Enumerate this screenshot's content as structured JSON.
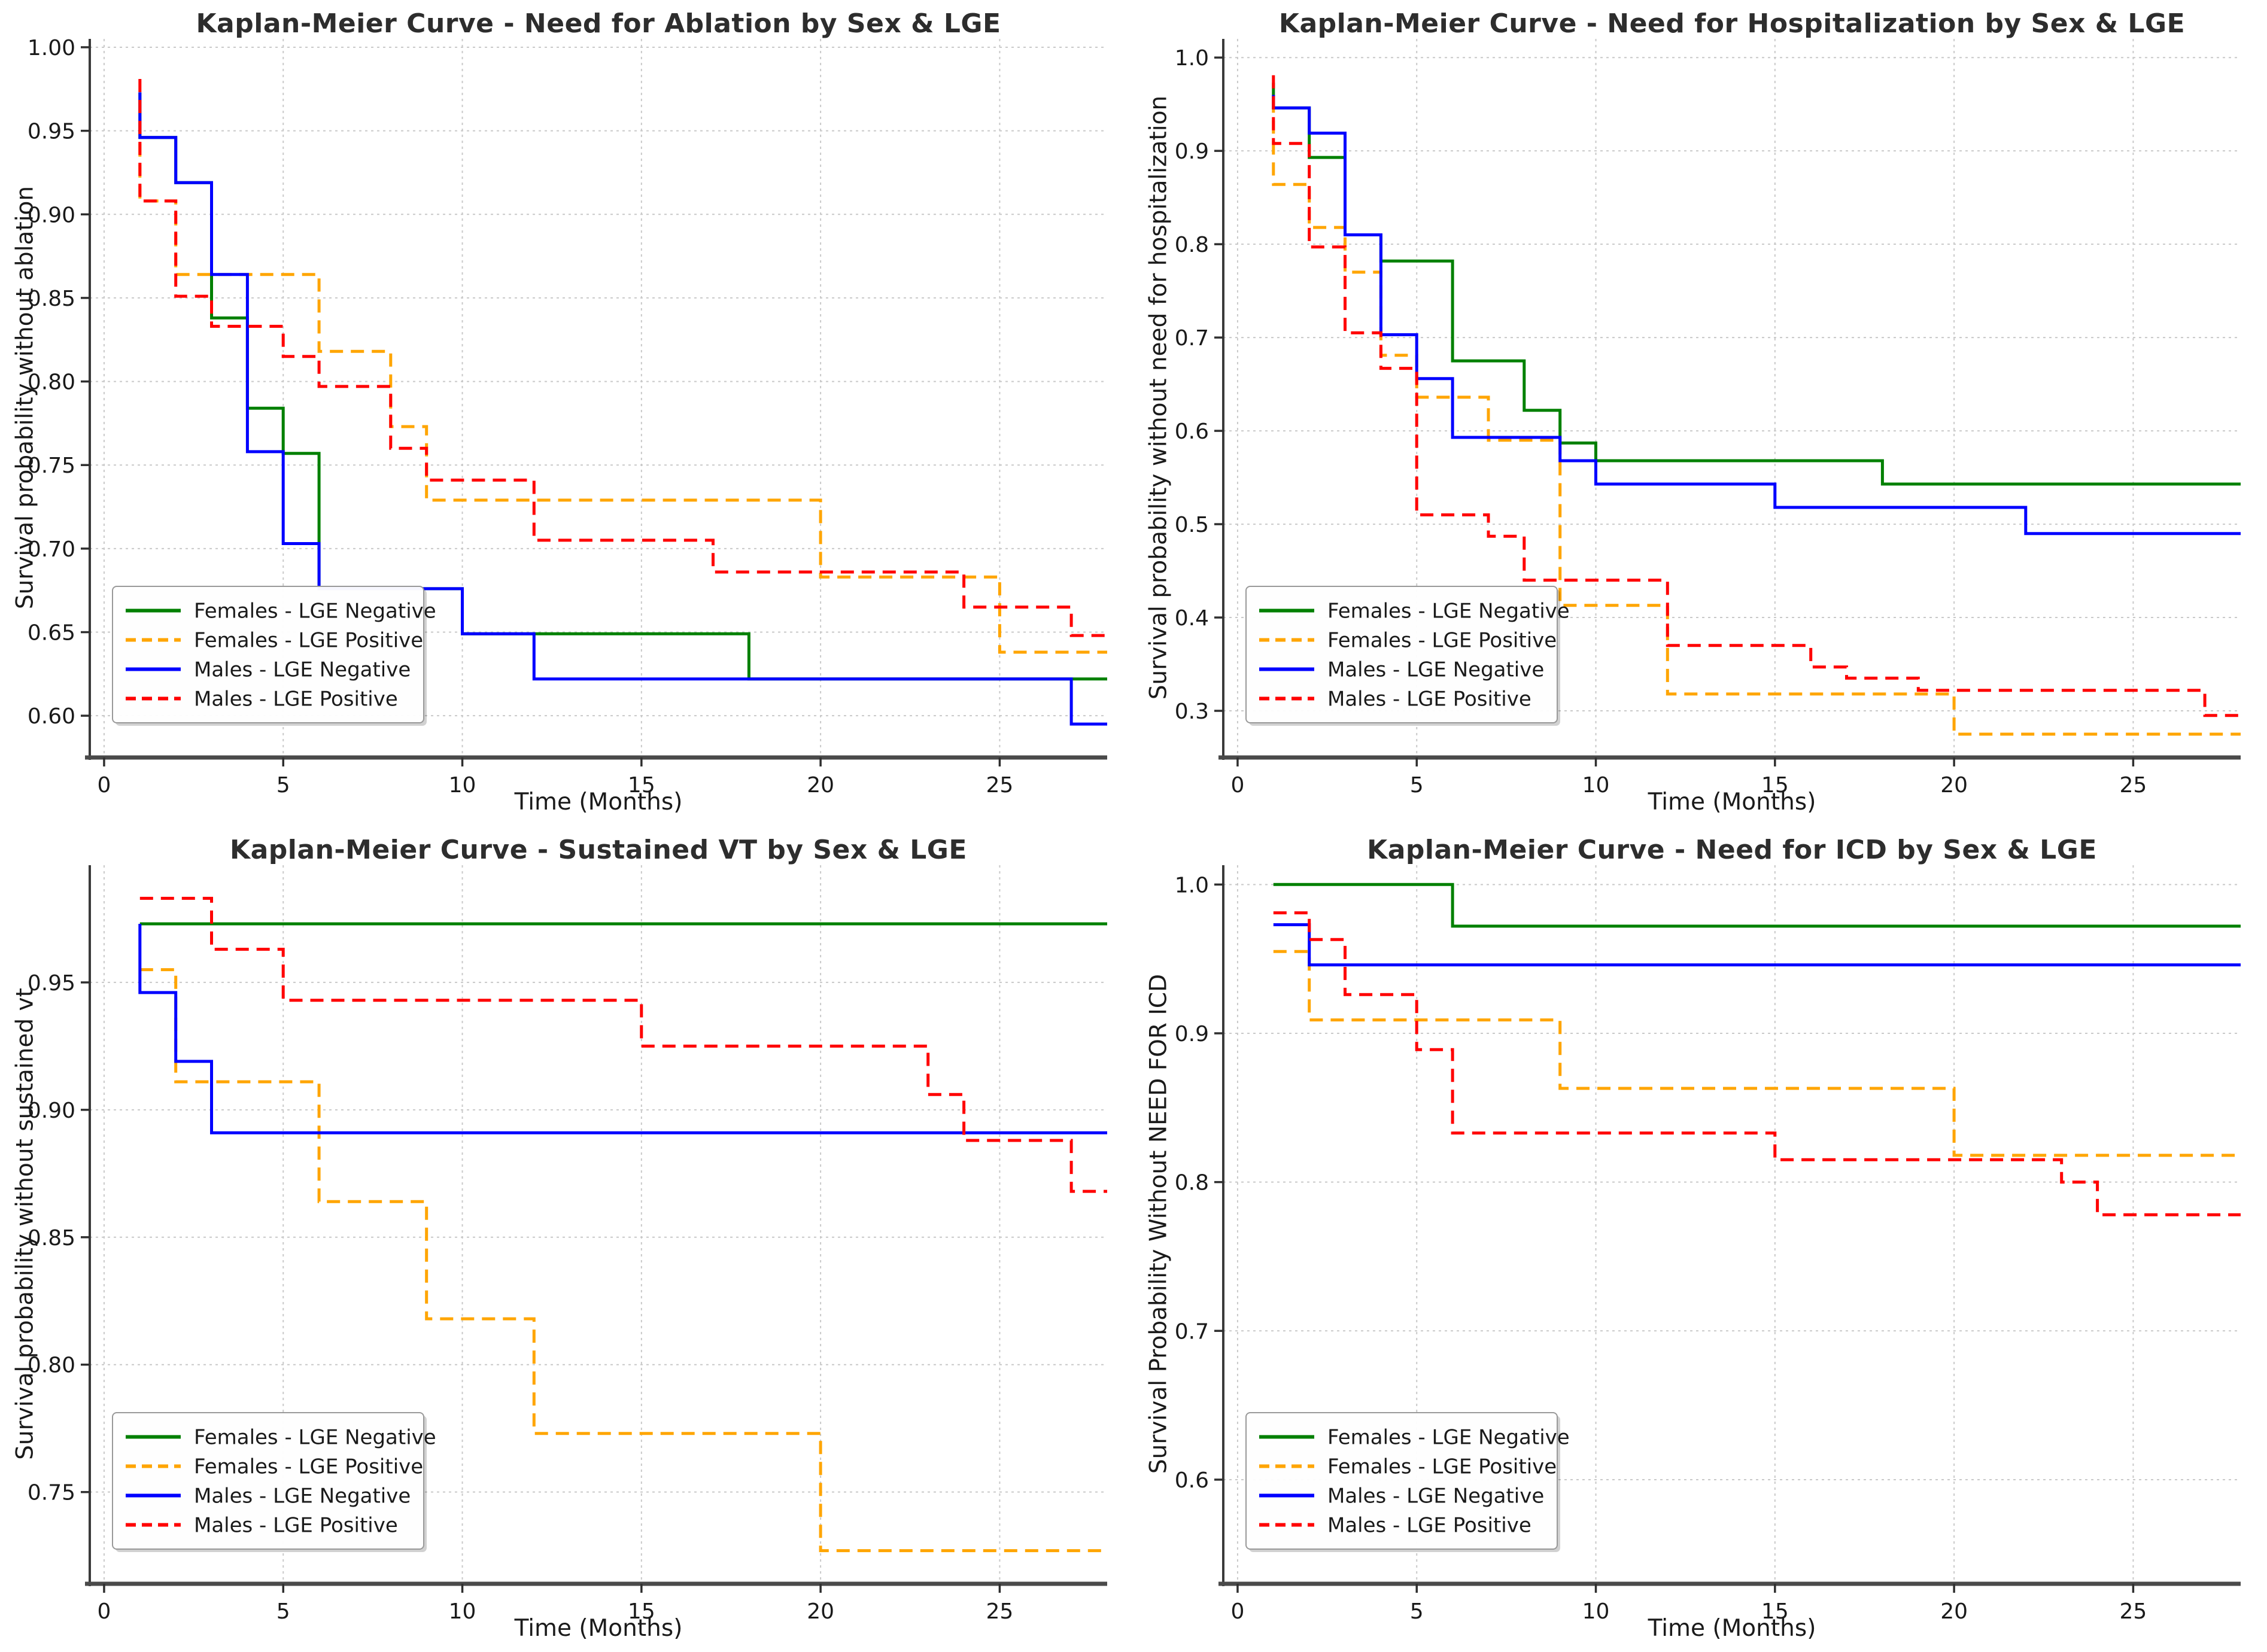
{
  "style": {
    "background": "#ffffff",
    "grid_color": "#c9c9c9",
    "spine_color": "#3a3a3a",
    "bottom_spine_color": "#4a4a4a",
    "title_color": "#2d2d2d",
    "text_color": "#1a1a1a",
    "legend_border_color": "#999999"
  },
  "legend": {
    "items": [
      {
        "label": "Females - LGE Negative",
        "color": "#008000",
        "dash": false
      },
      {
        "label": "Females - LGE Positive",
        "color": "#FFA500",
        "dash": true
      },
      {
        "label": "Males - LGE Negative",
        "color": "#0000FF",
        "dash": false
      },
      {
        "label": "Males - LGE Positive",
        "color": "#FF0000",
        "dash": true
      }
    ]
  },
  "chart_data": [
    {
      "type": "line",
      "subtype": "kaplan-meier-step",
      "title": "Kaplan-Meier Curve - Need for Ablation by Sex & LGE",
      "xlabel": "Time (Months)",
      "ylabel": "Survival probability without ablation",
      "xlim": [
        -0.4,
        28.0
      ],
      "ylim": [
        0.575,
        1.005
      ],
      "xticks": [
        0,
        5,
        10,
        15,
        20,
        25
      ],
      "yticks": [
        0.6,
        0.65,
        0.7,
        0.75,
        0.8,
        0.85,
        0.9,
        0.95,
        1.0
      ],
      "ytick_decimals": 2,
      "grid": true,
      "legend_position": "lower left",
      "series": [
        {
          "key": "females-lge-negative",
          "label": "Females - LGE Negative",
          "color": "#008000",
          "dash": false,
          "points": [
            [
              1,
              0.973
            ],
            [
              1,
              0.946
            ],
            [
              2,
              0.919
            ],
            [
              3,
              0.838
            ],
            [
              4,
              0.784
            ],
            [
              5,
              0.757
            ],
            [
              6,
              0.676
            ],
            [
              10,
              0.649
            ],
            [
              18,
              0.622
            ],
            [
              28,
              0.622
            ]
          ]
        },
        {
          "key": "females-lge-positive",
          "label": "Females - LGE Positive",
          "color": "#FFA500",
          "dash": true,
          "points": [
            [
              1,
              0.955
            ],
            [
              1,
              0.908
            ],
            [
              2,
              0.864
            ],
            [
              6,
              0.818
            ],
            [
              8,
              0.773
            ],
            [
              9,
              0.729
            ],
            [
              20,
              0.683
            ],
            [
              25,
              0.638
            ],
            [
              28,
              0.638
            ]
          ]
        },
        {
          "key": "males-lge-negative",
          "label": "Males - LGE Negative",
          "color": "#0000FF",
          "dash": false,
          "points": [
            [
              1,
              0.973
            ],
            [
              1,
              0.946
            ],
            [
              2,
              0.919
            ],
            [
              3,
              0.864
            ],
            [
              4,
              0.758
            ],
            [
              5,
              0.703
            ],
            [
              6,
              0.676
            ],
            [
              10,
              0.649
            ],
            [
              12,
              0.622
            ],
            [
              27,
              0.595
            ],
            [
              28,
              0.595
            ]
          ]
        },
        {
          "key": "males-lge-positive",
          "label": "Males - LGE Positive",
          "color": "#FF0000",
          "dash": true,
          "points": [
            [
              1,
              0.981
            ],
            [
              1,
              0.908
            ],
            [
              2,
              0.851
            ],
            [
              3,
              0.833
            ],
            [
              5,
              0.815
            ],
            [
              6,
              0.797
            ],
            [
              8,
              0.76
            ],
            [
              9,
              0.741
            ],
            [
              12,
              0.705
            ],
            [
              17,
              0.686
            ],
            [
              24,
              0.665
            ],
            [
              27,
              0.648
            ],
            [
              28,
              0.648
            ]
          ]
        }
      ]
    },
    {
      "type": "line",
      "subtype": "kaplan-meier-step",
      "title": "Kaplan-Meier Curve - Need for Hospitalization by Sex & LGE",
      "xlabel": "Time (Months)",
      "ylabel": "Survival probability without need for hospitalization",
      "xlim": [
        -0.4,
        28.0
      ],
      "ylim": [
        0.25,
        1.02
      ],
      "xticks": [
        0,
        5,
        10,
        15,
        20,
        25
      ],
      "yticks": [
        0.3,
        0.4,
        0.5,
        0.6,
        0.7,
        0.8,
        0.9,
        1.0
      ],
      "ytick_decimals": 1,
      "grid": true,
      "legend_position": "lower left",
      "series": [
        {
          "key": "females-lge-negative",
          "label": "Females - LGE Negative",
          "color": "#008000",
          "dash": false,
          "points": [
            [
              1,
              0.973
            ],
            [
              1,
              0.946
            ],
            [
              2,
              0.893
            ],
            [
              3,
              0.81
            ],
            [
              4,
              0.782
            ],
            [
              6,
              0.675
            ],
            [
              8,
              0.622
            ],
            [
              9,
              0.587
            ],
            [
              10,
              0.568
            ],
            [
              18,
              0.543
            ],
            [
              28,
              0.543
            ]
          ]
        },
        {
          "key": "females-lge-positive",
          "label": "Females - LGE Positive",
          "color": "#FFA500",
          "dash": true,
          "points": [
            [
              1,
              0.955
            ],
            [
              1,
              0.864
            ],
            [
              2,
              0.818
            ],
            [
              3,
              0.77
            ],
            [
              4,
              0.681
            ],
            [
              5,
              0.636
            ],
            [
              7,
              0.59
            ],
            [
              9,
              0.413
            ],
            [
              12,
              0.318
            ],
            [
              20,
              0.275
            ],
            [
              28,
              0.275
            ]
          ]
        },
        {
          "key": "males-lge-negative",
          "label": "Males - LGE Negative",
          "color": "#0000FF",
          "dash": false,
          "points": [
            [
              1,
              0.96
            ],
            [
              1,
              0.946
            ],
            [
              2,
              0.919
            ],
            [
              3,
              0.81
            ],
            [
              4,
              0.703
            ],
            [
              5,
              0.656
            ],
            [
              6,
              0.593
            ],
            [
              9,
              0.568
            ],
            [
              10,
              0.543
            ],
            [
              15,
              0.518
            ],
            [
              22,
              0.49
            ],
            [
              28,
              0.49
            ]
          ]
        },
        {
          "key": "males-lge-positive",
          "label": "Males - LGE Positive",
          "color": "#FF0000",
          "dash": true,
          "points": [
            [
              1,
              0.981
            ],
            [
              1,
              0.908
            ],
            [
              2,
              0.797
            ],
            [
              3,
              0.705
            ],
            [
              4,
              0.667
            ],
            [
              5,
              0.51
            ],
            [
              7,
              0.487
            ],
            [
              8,
              0.44
            ],
            [
              12,
              0.37
            ],
            [
              16,
              0.347
            ],
            [
              17,
              0.335
            ],
            [
              19,
              0.322
            ],
            [
              27,
              0.295
            ],
            [
              28,
              0.295
            ]
          ]
        }
      ]
    },
    {
      "type": "line",
      "subtype": "kaplan-meier-step",
      "title": "Kaplan-Meier Curve - Sustained VT by Sex & LGE",
      "xlabel": "Time (Months)",
      "ylabel": "Survival probability without sustained vt",
      "xlim": [
        -0.4,
        28.0
      ],
      "ylim": [
        0.714,
        0.996
      ],
      "xticks": [
        0,
        5,
        10,
        15,
        20,
        25
      ],
      "yticks": [
        0.75,
        0.8,
        0.85,
        0.9,
        0.95
      ],
      "ytick_decimals": 2,
      "grid": true,
      "legend_position": "lower left",
      "series": [
        {
          "key": "females-lge-negative",
          "label": "Females - LGE Negative",
          "color": "#008000",
          "dash": false,
          "points": [
            [
              1,
              0.973
            ],
            [
              28,
              0.973
            ]
          ]
        },
        {
          "key": "females-lge-positive",
          "label": "Females - LGE Positive",
          "color": "#FFA500",
          "dash": true,
          "points": [
            [
              1,
              0.955
            ],
            [
              2,
              0.911
            ],
            [
              6,
              0.864
            ],
            [
              9,
              0.818
            ],
            [
              12,
              0.773
            ],
            [
              20,
              0.727
            ],
            [
              28,
              0.727
            ]
          ]
        },
        {
          "key": "males-lge-negative",
          "label": "Males - LGE Negative",
          "color": "#0000FF",
          "dash": false,
          "points": [
            [
              1,
              0.973
            ],
            [
              1,
              0.946
            ],
            [
              2,
              0.919
            ],
            [
              3,
              0.891
            ],
            [
              28,
              0.891
            ]
          ]
        },
        {
          "key": "males-lge-positive",
          "label": "Males - LGE Positive",
          "color": "#FF0000",
          "dash": true,
          "points": [
            [
              1,
              0.983
            ],
            [
              3,
              0.963
            ],
            [
              5,
              0.943
            ],
            [
              15,
              0.925
            ],
            [
              23,
              0.906
            ],
            [
              24,
              0.888
            ],
            [
              27,
              0.868
            ],
            [
              28,
              0.868
            ]
          ]
        }
      ]
    },
    {
      "type": "line",
      "subtype": "kaplan-meier-step",
      "title": "Kaplan-Meier Curve - Need for ICD by Sex & LGE",
      "xlabel": "Time (Months)",
      "ylabel": "Survival Probability Without NEED FOR ICD",
      "xlim": [
        -0.4,
        28.0
      ],
      "ylim": [
        0.53,
        1.013
      ],
      "xticks": [
        0,
        5,
        10,
        15,
        20,
        25
      ],
      "yticks": [
        0.6,
        0.7,
        0.8,
        0.9,
        1.0
      ],
      "ytick_decimals": 1,
      "grid": true,
      "legend_position": "lower left",
      "series": [
        {
          "key": "females-lge-negative",
          "label": "Females - LGE Negative",
          "color": "#008000",
          "dash": false,
          "points": [
            [
              1,
              1.0
            ],
            [
              6,
              0.972
            ],
            [
              28,
              0.972
            ]
          ]
        },
        {
          "key": "females-lge-positive",
          "label": "Females - LGE Positive",
          "color": "#FFA500",
          "dash": true,
          "points": [
            [
              1,
              0.955
            ],
            [
              2,
              0.909
            ],
            [
              9,
              0.863
            ],
            [
              20,
              0.818
            ],
            [
              28,
              0.818
            ]
          ]
        },
        {
          "key": "males-lge-negative",
          "label": "Males - LGE Negative",
          "color": "#0000FF",
          "dash": false,
          "points": [
            [
              1,
              0.973
            ],
            [
              2,
              0.946
            ],
            [
              28,
              0.946
            ]
          ]
        },
        {
          "key": "males-lge-positive",
          "label": "Males - LGE Positive",
          "color": "#FF0000",
          "dash": true,
          "points": [
            [
              1,
              0.981
            ],
            [
              2,
              0.963
            ],
            [
              3,
              0.926
            ],
            [
              5,
              0.889
            ],
            [
              6,
              0.833
            ],
            [
              15,
              0.815
            ],
            [
              23,
              0.8
            ],
            [
              24,
              0.778
            ],
            [
              28,
              0.778
            ]
          ]
        }
      ]
    }
  ]
}
